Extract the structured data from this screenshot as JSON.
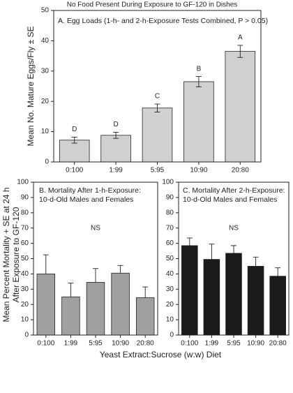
{
  "title": "No Food Present During Exposure to GF-120 in Dishes",
  "ylabel": [
    "Mean Percent Mortality + SE at 24 h",
    "After Exposure to GF-120"
  ],
  "xlabel": "Yeast Extract:Sucrose (w:w) Diet",
  "chart_data": [
    {
      "type": "bar",
      "title": [
        "A. Egg Loads (1-h- and 2-h-Exposure Tests Combined, P > 0.05)"
      ],
      "ylabel": "Mean No. Mature Eggs/Fly ± SE",
      "categories": [
        "0:100",
        "1:99",
        "5:95",
        "10:90",
        "20:80"
      ],
      "values": [
        7.2,
        8.8,
        17.8,
        26.5,
        36.5
      ],
      "errors": [
        1.0,
        1.0,
        1.3,
        1.7,
        2.0
      ],
      "error_style": "both",
      "letters": [
        "D",
        "D",
        "C",
        "B",
        "A"
      ],
      "color": "#d0d0d0",
      "ylim": [
        0,
        50
      ],
      "yticks": [
        0,
        10,
        20,
        30,
        40,
        50
      ]
    },
    {
      "type": "bar",
      "title": [
        "B. Mortality After 1-h-Exposure:",
        "10-d-Old Males and Females"
      ],
      "annotation": "NS",
      "categories": [
        "0:100",
        "1:99",
        "5:95",
        "10:90",
        "20:80"
      ],
      "values": [
        40,
        25,
        34.5,
        40.5,
        24.5
      ],
      "errors": [
        12.5,
        9,
        9,
        5,
        7
      ],
      "error_style": "upper",
      "color": "#a0a0a0",
      "ylim": [
        0,
        100
      ],
      "yticks": [
        0,
        10,
        20,
        30,
        40,
        50,
        60,
        70,
        80,
        90,
        100
      ]
    },
    {
      "type": "bar",
      "title": [
        "C. Mortality After 2-h-Exposure:",
        "10-d-Old Males and Females"
      ],
      "annotation": "NS",
      "categories": [
        "0:100",
        "1:99",
        "5:95",
        "10:90",
        "20:80"
      ],
      "values": [
        58.5,
        49.5,
        53.5,
        45,
        38.5
      ],
      "errors": [
        5,
        10,
        5,
        6,
        5.5
      ],
      "error_style": "upper",
      "color": "#1a1a1a",
      "ylim": [
        0,
        100
      ],
      "yticks": [
        0,
        10,
        20,
        30,
        40,
        50,
        60,
        70,
        80,
        90,
        100
      ]
    }
  ]
}
